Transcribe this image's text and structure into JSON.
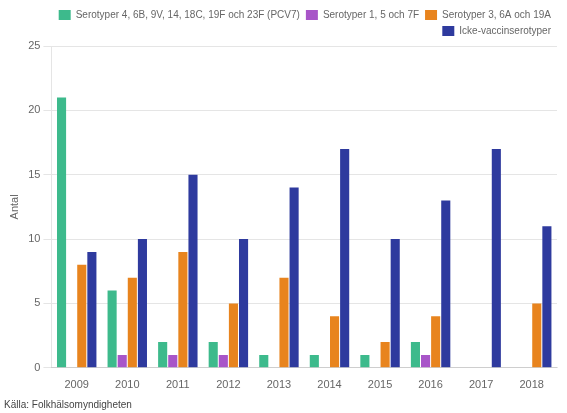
{
  "chart_data": {
    "type": "bar",
    "categories": [
      "2009",
      "2010",
      "2011",
      "2012",
      "2013",
      "2014",
      "2015",
      "2016",
      "2017",
      "2018"
    ],
    "series": [
      {
        "name": "Serotyper 4, 6B, 9V, 14, 18C, 19F och 23F (PCV7)",
        "color": "#3dba8c",
        "values": [
          21,
          6,
          2,
          2,
          1,
          1,
          1,
          2,
          0,
          0
        ]
      },
      {
        "name": "Serotyper 1, 5 och 7F",
        "color": "#a855c8",
        "values": [
          0,
          1,
          1,
          1,
          0,
          0,
          0,
          1,
          0,
          0
        ]
      },
      {
        "name": "Serotyper 3, 6A och 19A",
        "color": "#e8841e",
        "values": [
          8,
          7,
          9,
          5,
          7,
          4,
          2,
          4,
          0,
          5
        ]
      },
      {
        "name": "Icke-vaccinserotyper",
        "color": "#2e3a9e",
        "values": [
          9,
          10,
          15,
          10,
          14,
          17,
          10,
          13,
          17,
          11
        ]
      }
    ],
    "ylabel": "Antal",
    "source": "Källa: Folkhälsomyndigheten",
    "ylim": [
      0,
      25
    ],
    "yticks": [
      0,
      5,
      10,
      15,
      20,
      25
    ],
    "grid": true,
    "legend": "upper right"
  }
}
